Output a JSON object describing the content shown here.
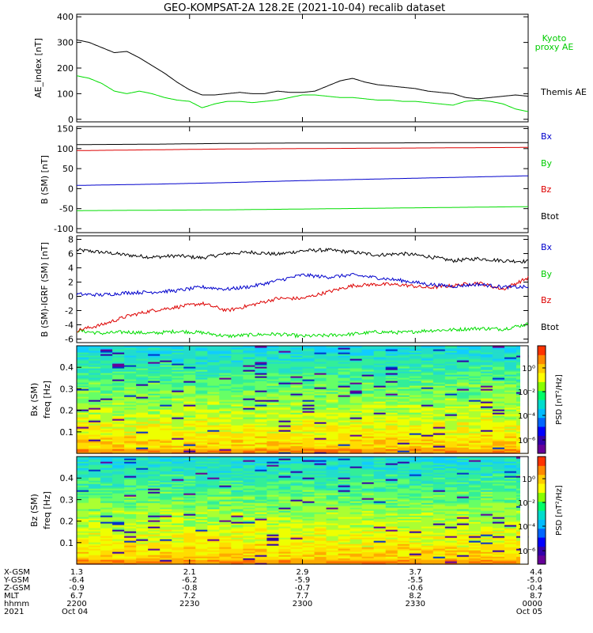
{
  "chart_data": [
    {
      "type": "line",
      "title": "GEO-KOMPSAT-2A 128.2E (2021-10-04) recalib dataset",
      "ylabel": "AE_index [nT]",
      "ylim": [
        -10,
        410
      ],
      "yticks": [
        0,
        100,
        200,
        300,
        400
      ],
      "x": [
        0,
        5,
        10,
        15,
        20,
        25,
        30,
        35,
        40,
        45,
        50,
        55,
        60,
        65,
        70,
        75,
        80,
        85,
        90,
        95,
        100,
        105,
        110,
        115,
        120,
        125,
        130,
        135,
        140,
        145,
        150,
        155,
        160,
        165,
        170,
        175,
        180
      ],
      "series": [
        {
          "name": "Themis AE",
          "color": "#000000",
          "values": [
            310,
            300,
            280,
            260,
            265,
            240,
            210,
            180,
            145,
            115,
            95,
            95,
            100,
            105,
            100,
            100,
            110,
            105,
            105,
            110,
            130,
            150,
            160,
            145,
            135,
            130,
            125,
            120,
            110,
            105,
            100,
            85,
            80,
            85,
            90,
            95,
            90
          ]
        },
        {
          "name": "Kyoto proxy AE",
          "color": "#00dd00",
          "values": [
            170,
            160,
            140,
            110,
            100,
            110,
            100,
            85,
            75,
            70,
            45,
            60,
            70,
            70,
            65,
            70,
            75,
            85,
            95,
            95,
            90,
            85,
            85,
            80,
            75,
            75,
            70,
            70,
            65,
            60,
            55,
            70,
            75,
            70,
            60,
            40,
            30
          ]
        }
      ]
    },
    {
      "type": "line",
      "ylabel": "B (SM) [nT]",
      "ylim": [
        -110,
        155
      ],
      "yticks": [
        -100,
        -50,
        0,
        50,
        100,
        150
      ],
      "x": [
        0,
        30,
        60,
        90,
        120,
        150,
        180
      ],
      "series": [
        {
          "name": "Bx",
          "color": "#000000",
          "values": [
            110,
            111,
            113,
            114,
            114,
            115,
            115
          ]
        },
        {
          "name": "By",
          "color": "#00dd00",
          "values": [
            -55,
            -54,
            -53,
            -51,
            -49,
            -47,
            -45
          ]
        },
        {
          "name": "Bz",
          "color": "#dd0000",
          "values": [
            95,
            97,
            99,
            100,
            101,
            102,
            103
          ]
        },
        {
          "name": "Btot",
          "color": "#0000cc",
          "values": [
            8,
            11,
            15,
            20,
            24,
            28,
            32
          ]
        }
      ]
    },
    {
      "type": "line",
      "ylabel": "B (SM)-IGRF (SM) [nT]",
      "ylim": [
        -6.5,
        8.5
      ],
      "yticks": [
        -6,
        -4,
        -2,
        0,
        2,
        4,
        6,
        8
      ],
      "x": [
        0,
        10,
        20,
        30,
        40,
        50,
        60,
        70,
        80,
        90,
        100,
        110,
        120,
        130,
        140,
        150,
        160,
        170,
        180
      ],
      "series": [
        {
          "name": "Bx",
          "color": "#000000",
          "values": [
            6.5,
            6.2,
            5.8,
            5.5,
            5.7,
            5.4,
            6.0,
            6.2,
            5.9,
            6.4,
            6.5,
            6.2,
            5.8,
            6.0,
            5.6,
            5.0,
            5.3,
            5.0,
            4.9
          ]
        },
        {
          "name": "By",
          "color": "#00dd00",
          "values": [
            -4.8,
            -5.2,
            -5.0,
            -5.2,
            -4.9,
            -5.1,
            -5.6,
            -5.4,
            -5.3,
            -5.6,
            -5.5,
            -5.3,
            -5.0,
            -5.1,
            -4.8,
            -4.7,
            -4.5,
            -4.6,
            -3.9
          ]
        },
        {
          "name": "Bz",
          "color": "#dd0000",
          "values": [
            -4.8,
            -4.0,
            -2.8,
            -2.0,
            -1.5,
            -1.0,
            -2.0,
            -1.2,
            -0.3,
            -0.3,
            0.6,
            1.5,
            1.7,
            1.6,
            1.2,
            1.5,
            1.9,
            1.0,
            2.6
          ]
        },
        {
          "name": "Btot",
          "color": "#0000cc",
          "values": [
            0.3,
            0.2,
            0.5,
            0.6,
            0.8,
            1.3,
            1.0,
            1.4,
            2.2,
            3.0,
            2.7,
            3.0,
            2.6,
            2.2,
            1.7,
            1.4,
            1.7,
            1.3,
            1.3
          ]
        }
      ]
    },
    {
      "type": "heatmap",
      "ylabel": "Bx (SM) freq [Hz]",
      "ylim": [
        0,
        0.5
      ],
      "yticks": [
        0.1,
        0.2,
        0.3,
        0.4
      ],
      "colorbar": {
        "label": "PSD [nT²/Hz]",
        "ticks": [
          "10⁰",
          "10⁻²",
          "10⁻⁴",
          "10⁻⁶"
        ]
      }
    },
    {
      "type": "heatmap",
      "ylabel": "Bz (SM) freq [Hz]",
      "ylim": [
        0,
        0.5
      ],
      "yticks": [
        0.1,
        0.2,
        0.3,
        0.4
      ],
      "colorbar": {
        "label": "PSD [nT²/Hz]",
        "ticks": [
          "10⁰",
          "10⁻²",
          "10⁻⁴",
          "10⁻⁶"
        ]
      }
    }
  ],
  "legends": {
    "ae": {
      "kyoto_line1": "Kyoto",
      "kyoto_line2": "proxy AE",
      "themis": "Themis AE"
    },
    "b": [
      "Bx",
      "By",
      "Bz",
      "Btot"
    ],
    "colors": {
      "Bx": "#0000cc",
      "By": "#00cc00",
      "Bz": "#dd0000",
      "Btot": "#000000"
    }
  },
  "orbit_labels": {
    "rows": [
      "X-GSM",
      "Y-GSM",
      "Z-GSM",
      "MLT",
      "hhmm",
      "2021"
    ],
    "columns": [
      [
        "1.3",
        "-6.4",
        "-0.9",
        "6.7",
        "2200",
        "Oct 04"
      ],
      [
        "2.1",
        "-6.2",
        "-0.8",
        "7.2",
        "2230",
        ""
      ],
      [
        "2.9",
        "-5.9",
        "-0.7",
        "7.7",
        "2300",
        ""
      ],
      [
        "3.7",
        "-5.5",
        "-0.6",
        "8.2",
        "2330",
        ""
      ],
      [
        "4.4",
        "-5.0",
        "-0.4",
        "8.7",
        "0000",
        "Oct 05"
      ]
    ]
  }
}
